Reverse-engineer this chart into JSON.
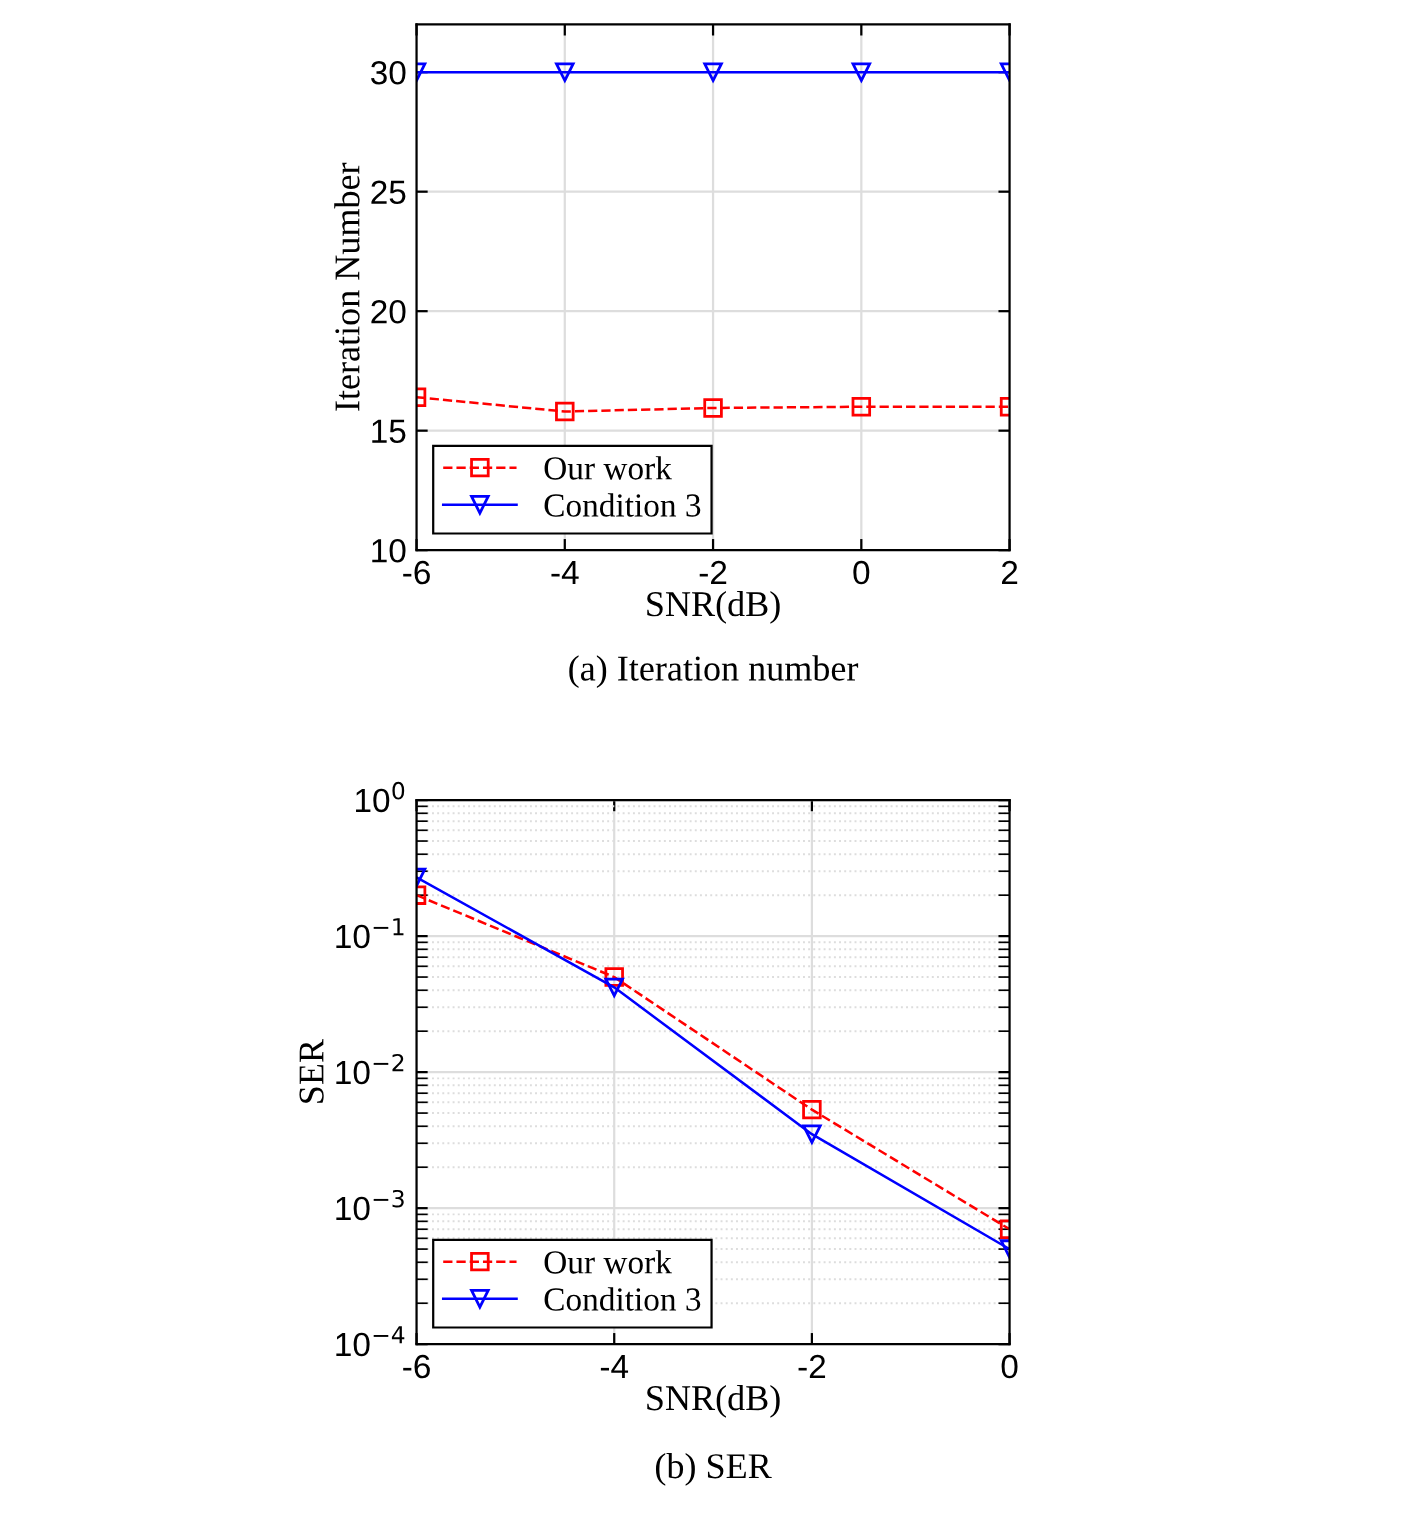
{
  "chart_data": [
    {
      "type": "line",
      "xlabel": "SNR(dB)",
      "ylabel": "Iteration Number",
      "annotations": [
        "(a) Iteration number"
      ],
      "x": [
        -6,
        -4,
        -2,
        0,
        2
      ],
      "xlim": [
        -6,
        2
      ],
      "xticks": [
        -6,
        -4,
        -2,
        0,
        2
      ],
      "ylim": [
        10,
        32
      ],
      "yticks": [
        10,
        15,
        20,
        25,
        30
      ],
      "grid": true,
      "legend": "bottom left",
      "series": [
        {
          "name": "Our work",
          "color": "#ff0000",
          "values": [
            16.4,
            15.8,
            15.95,
            16.0,
            16.0
          ],
          "marker": "square",
          "line_style": "dashed"
        },
        {
          "name": "Condition 3",
          "color": "#0000ff",
          "values": [
            30,
            30,
            30,
            30,
            30
          ],
          "marker": "triangle",
          "line_style": "solid"
        }
      ]
    },
    {
      "type": "line",
      "xlabel": "SNR(dB)",
      "ylabel": "SER",
      "annotations": [
        "(b) SER"
      ],
      "log": true,
      "x": [
        -6,
        -4,
        -2,
        0
      ],
      "xlim": [
        -6,
        0
      ],
      "xticks": [
        -6,
        -4,
        -2,
        0
      ],
      "ylim": [
        0.0001,
        1
      ],
      "yticks": [
        {
          "value": 0.0001,
          "label": "10$^{−4}$"
        },
        {
          "value": 0.001,
          "label": "10$^{−3}$"
        },
        {
          "value": 0.01,
          "label": "10$^{−2}$"
        },
        {
          "value": 0.1,
          "label": "10$^{−1}$"
        },
        {
          "value": 1,
          "label": "10$^{0}$"
        }
      ],
      "grid": true,
      "legend": "bottom left",
      "series": [
        {
          "name": "Our work",
          "color": "#ff0000",
          "values": [
            0.2,
            0.05,
            0.0053,
            0.0007
          ],
          "marker": "square",
          "line_style": "dashed"
        },
        {
          "name": "Condition 3",
          "color": "#0000ff",
          "values": [
            0.27,
            0.042,
            0.0035,
            0.0005
          ],
          "marker": "triangle",
          "line_style": "solid"
        }
      ]
    }
  ]
}
